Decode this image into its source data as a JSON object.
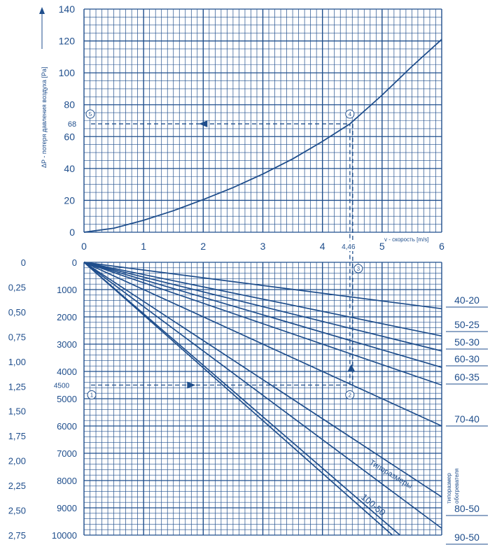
{
  "colors": {
    "ink": "#1f4e8c",
    "grid": "#1f4e8c",
    "background": "#ffffff"
  },
  "chart_data": [
    {
      "type": "line",
      "name_id": "pressure-loss-chart",
      "ylabel": "ΔP - потеря давления воздуха [Pa]",
      "xlabel": "v - скорость [m/s]",
      "xlim": [
        0,
        6
      ],
      "ylim": [
        0,
        140
      ],
      "x_ticks": [
        "0",
        "1",
        "2",
        "3",
        "4",
        "5",
        "6"
      ],
      "y_ticks": [
        "0",
        "20",
        "40",
        "60",
        "80",
        "100",
        "120",
        "140"
      ],
      "grid": true,
      "series": [
        {
          "x": [
            0,
            0.5,
            1,
            1.5,
            2,
            2.5,
            3,
            3.5,
            4,
            4.46,
            5,
            5.5,
            6
          ],
          "y": [
            0,
            2.5,
            7.5,
            13.5,
            20.5,
            28,
            36.5,
            46,
            57,
            68,
            86,
            104,
            121
          ]
        }
      ],
      "annotations": {
        "x_marker_label": "4,46",
        "y_marker_label": "68",
        "x_marker": 4.46,
        "y_marker": 68,
        "step_labels": [
          "4",
          "5"
        ]
      }
    },
    {
      "type": "line",
      "name_id": "air-flow-chart",
      "left_axis_label_ticks": [
        "0",
        "0,25",
        "0,50",
        "0,75",
        "1,00",
        "1,25",
        "1,50",
        "1,75",
        "2,00",
        "2,25",
        "2,50",
        "2,75"
      ],
      "y_ticks": [
        "0",
        "1000",
        "2000",
        "3000",
        "4000",
        "5000",
        "6000",
        "7000",
        "8000",
        "9000",
        "10000"
      ],
      "xlim": [
        0,
        6
      ],
      "ylim": [
        0,
        10000
      ],
      "grid": true,
      "series": [
        {
          "name": "40-20",
          "x": [
            0,
            6
          ],
          "y": [
            0,
            1700
          ]
        },
        {
          "name": "50-25",
          "x": [
            0,
            6
          ],
          "y": [
            0,
            2700
          ]
        },
        {
          "name": "50-30",
          "x": [
            0,
            6
          ],
          "y": [
            0,
            3250
          ]
        },
        {
          "name": "60-30",
          "x": [
            0,
            6
          ],
          "y": [
            0,
            3850
          ]
        },
        {
          "name": "60-35",
          "x": [
            0,
            6
          ],
          "y": [
            0,
            4500
          ]
        },
        {
          "name": "70-40",
          "x": [
            0,
            6
          ],
          "y": [
            0,
            6000
          ]
        },
        {
          "name": "80-50",
          "x": [
            0,
            6
          ],
          "y": [
            0,
            8600
          ]
        },
        {
          "name": "90-50",
          "x": [
            0,
            6
          ],
          "y": [
            0,
            9750
          ]
        },
        {
          "name": "100-50",
          "x": [
            0,
            5.3
          ],
          "y": [
            0,
            10000
          ]
        },
        {
          "name": "",
          "x": [
            0,
            6
          ],
          "y": [
            0,
            11600
          ]
        }
      ],
      "annotations": {
        "flow_marker_label": "4500",
        "flow_marker": 4500,
        "x_marker": 4.46,
        "step_labels": [
          "1",
          "2",
          "3"
        ],
        "sizes_label": "Типоразмеры",
        "heater_sizes_label_1": "типоразмер",
        "heater_sizes_label_2": "обогревателя"
      },
      "right_labels": [
        "40-20",
        "50-25",
        "50-30",
        "60-30",
        "60-35",
        "70-40",
        "80-50",
        "90-50"
      ],
      "inline_label": "100-50"
    }
  ]
}
